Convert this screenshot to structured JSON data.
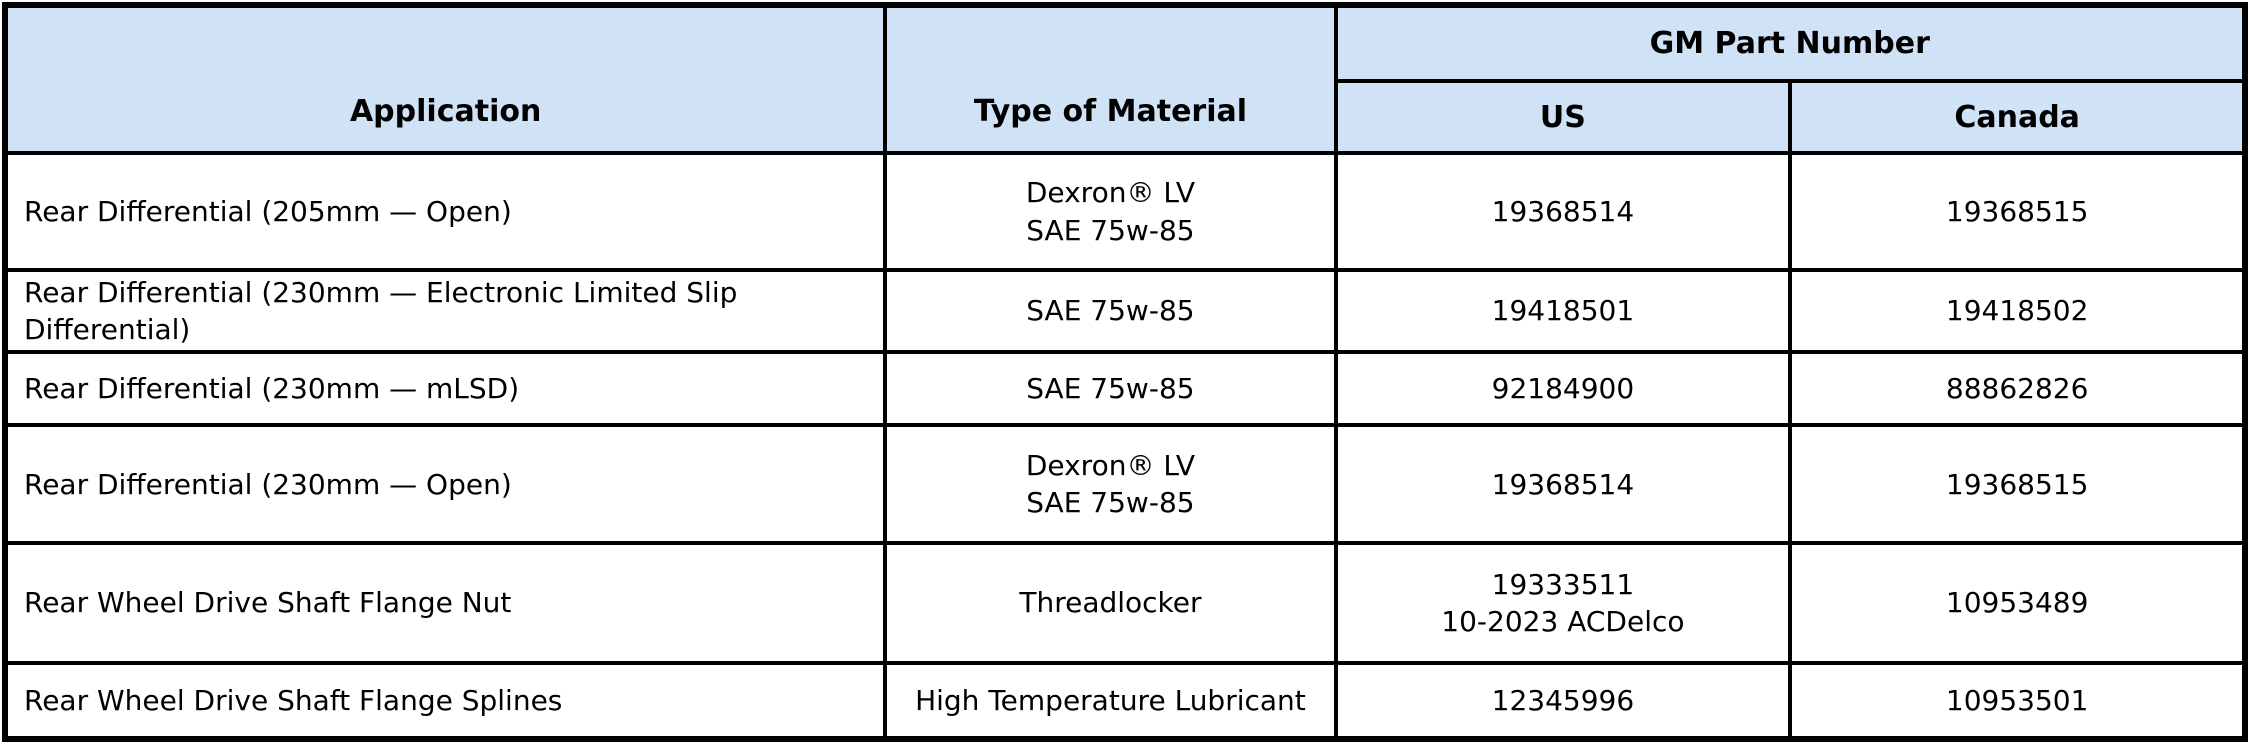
{
  "colors": {
    "header_bg": "#d0e2f5",
    "border": "#000000",
    "text": "#000000"
  },
  "table": {
    "header": {
      "application": "Application",
      "type_of_material": "Type of Material",
      "gm_part_number": "GM Part Number",
      "us": "US",
      "canada": "Canada"
    },
    "rows": [
      {
        "application": "Rear Differential (205mm — Open)",
        "material_lines": [
          "Dexron® LV",
          "SAE 75w-85"
        ],
        "us_lines": [
          "19368514"
        ],
        "canada_lines": [
          "19368515"
        ]
      },
      {
        "application": "Rear Differential (230mm — Electronic Limited Slip Differential)",
        "material_lines": [
          "SAE 75w-85"
        ],
        "us_lines": [
          "19418501"
        ],
        "canada_lines": [
          "19418502"
        ]
      },
      {
        "application": "Rear Differential (230mm — mLSD)",
        "material_lines": [
          "SAE 75w-85"
        ],
        "us_lines": [
          "92184900"
        ],
        "canada_lines": [
          "88862826"
        ]
      },
      {
        "application": "Rear Differential (230mm — Open)",
        "material_lines": [
          "Dexron® LV",
          "SAE 75w-85"
        ],
        "us_lines": [
          "19368514"
        ],
        "canada_lines": [
          "19368515"
        ]
      },
      {
        "application": "Rear Wheel Drive Shaft Flange Nut",
        "material_lines": [
          "Threadlocker"
        ],
        "us_lines": [
          "19333511",
          "10-2023 ACDelco"
        ],
        "canada_lines": [
          "10953489"
        ]
      },
      {
        "application": "Rear Wheel Drive Shaft Flange Splines",
        "material_lines": [
          "High Temperature Lubricant"
        ],
        "us_lines": [
          "12345996"
        ],
        "canada_lines": [
          "10953501"
        ]
      }
    ]
  }
}
